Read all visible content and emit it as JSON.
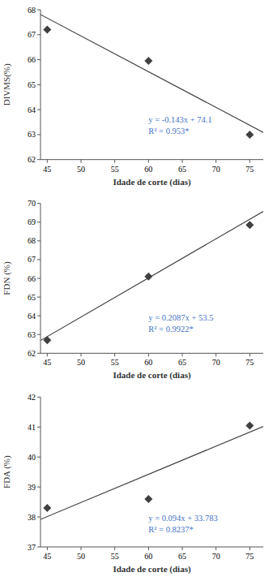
{
  "chart_data": [
    {
      "type": "scatter",
      "xlabel": "Idade de corte (dias)",
      "ylabel": "DIVMS(%)",
      "xlim": [
        44,
        77
      ],
      "xticks": [
        45,
        50,
        55,
        60,
        65,
        70,
        75
      ],
      "ylim": [
        62,
        68
      ],
      "yticks": [
        62,
        63,
        64,
        65,
        66,
        67,
        68
      ],
      "grid": false,
      "series": [
        {
          "type": "scatter",
          "marker": "diamond",
          "color": "#404040",
          "x": [
            45,
            60,
            75
          ],
          "values": [
            67.2,
            65.95,
            63.0
          ]
        },
        {
          "type": "line",
          "line_style": "solid",
          "color": "#404040",
          "x": [
            44,
            77
          ],
          "values": [
            67.808,
            63.089
          ]
        }
      ],
      "annotations": [
        {
          "lines": [
            "y = -0.143x + 74.1",
            "R² = 0.953*"
          ],
          "x": 60,
          "y": 63.8,
          "color": "#4472C4"
        }
      ]
    },
    {
      "type": "scatter",
      "xlabel": "Idade de corte (dias)",
      "ylabel": "FDN (%)",
      "xlim": [
        44,
        77
      ],
      "xticks": [
        45,
        50,
        55,
        60,
        65,
        70,
        75
      ],
      "ylim": [
        62,
        70
      ],
      "yticks": [
        62,
        63,
        64,
        65,
        66,
        67,
        68,
        69,
        70
      ],
      "grid": false,
      "series": [
        {
          "type": "scatter",
          "marker": "diamond",
          "color": "#404040",
          "x": [
            45,
            60,
            75
          ],
          "values": [
            62.7,
            66.1,
            68.85
          ]
        },
        {
          "type": "line",
          "line_style": "solid",
          "color": "#404040",
          "x": [
            44,
            77
          ],
          "values": [
            62.6828,
            69.5699
          ]
        }
      ],
      "annotations": [
        {
          "lines": [
            "y = 0.2087x + 53.5",
            "R² = 0.9922*"
          ],
          "x": 60,
          "y": 64.2,
          "color": "#4472C4"
        }
      ]
    },
    {
      "type": "scatter",
      "xlabel": "Idade de corte (dias)",
      "ylabel": "FDA (%)",
      "xlim": [
        44,
        77
      ],
      "xticks": [
        45,
        50,
        55,
        60,
        65,
        70,
        75
      ],
      "ylim": [
        37,
        42
      ],
      "yticks": [
        37,
        38,
        39,
        40,
        41,
        42
      ],
      "grid": false,
      "series": [
        {
          "type": "scatter",
          "marker": "diamond",
          "color": "#404040",
          "x": [
            45,
            60,
            75
          ],
          "values": [
            38.3,
            38.6,
            41.05
          ]
        },
        {
          "type": "line",
          "line_style": "solid",
          "color": "#404040",
          "x": [
            44,
            77
          ],
          "values": [
            37.919,
            41.021
          ]
        }
      ],
      "annotations": [
        {
          "lines": [
            "y = 0.094x + 33.783",
            "R² = 0.8237*"
          ],
          "x": 60,
          "y": 38.15,
          "color": "#4472C4"
        }
      ]
    }
  ]
}
